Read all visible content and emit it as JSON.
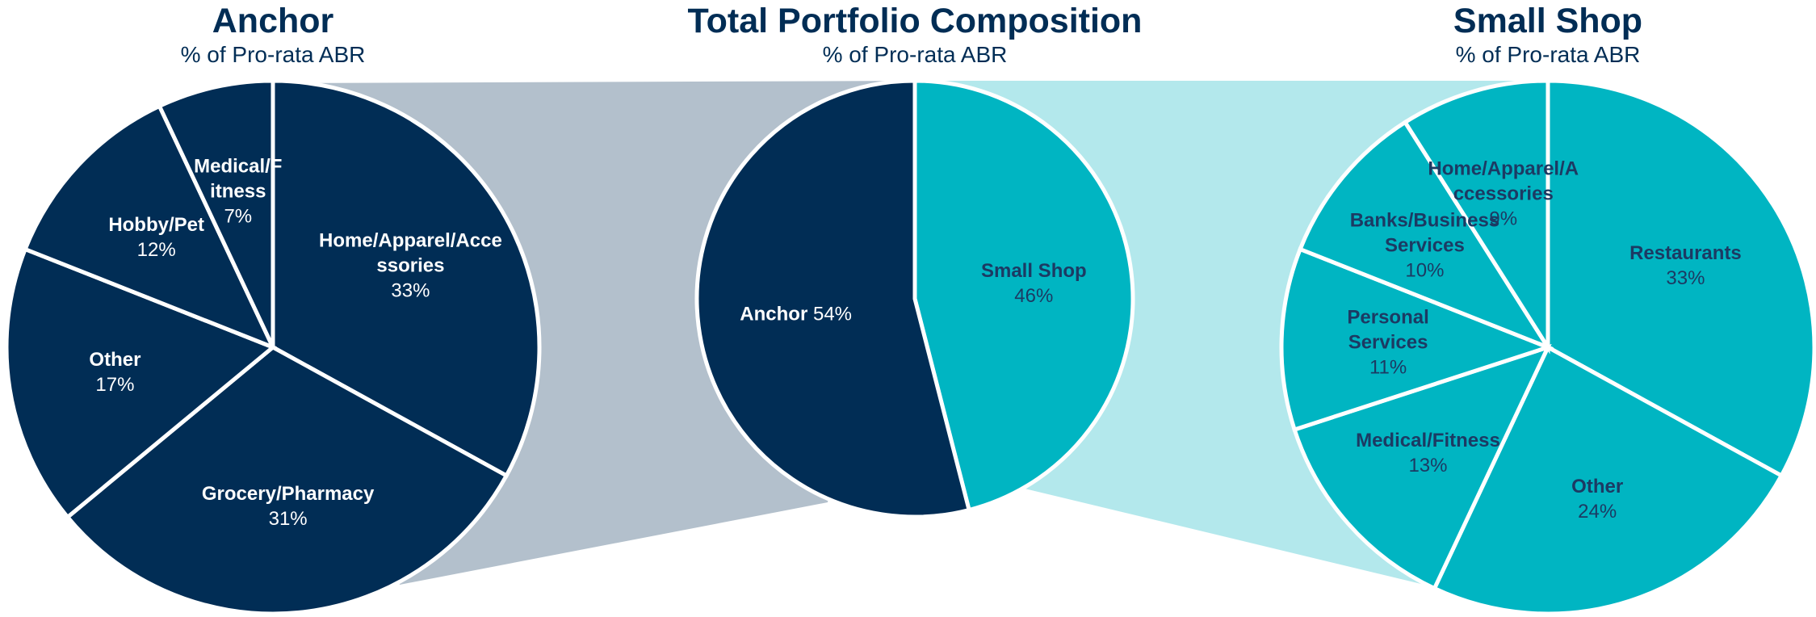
{
  "chart_data": [
    {
      "type": "pie",
      "title": "Anchor",
      "subtitle": "% of Pro-rata ABR",
      "categories": [
        "Home/Apparel/Accessories",
        "Grocery/Pharmacy",
        "Other",
        "Hobby/Pet",
        "Medical/Fitness"
      ],
      "values": [
        33,
        31,
        17,
        12,
        7
      ],
      "value_labels": [
        "33%",
        "31%",
        "17%",
        "12%",
        "7%"
      ],
      "colors": [
        "#012d55",
        "#012d55",
        "#012d55",
        "#012d55",
        "#012d55"
      ]
    },
    {
      "type": "pie",
      "title": "Total Portfolio Composition",
      "subtitle": "% of Pro-rata ABR",
      "categories": [
        "Small Shop",
        "Anchor"
      ],
      "values": [
        46,
        54
      ],
      "value_labels": [
        "46%",
        "54%"
      ],
      "colors": [
        "#00b5c2",
        "#012d55"
      ]
    },
    {
      "type": "pie",
      "title": "Small Shop",
      "subtitle": "% of Pro-rata ABR",
      "categories": [
        "Restaurants",
        "Other",
        "Medical/Fitness",
        "Personal Services",
        "Banks/Business Services",
        "Home/Apparel/Accessories"
      ],
      "values": [
        33,
        24,
        13,
        11,
        10,
        9
      ],
      "value_labels": [
        "33%",
        "24%",
        "13%",
        "11%",
        "10%",
        "9%"
      ],
      "colors": [
        "#00b5c2",
        "#00b5c2",
        "#00b5c2",
        "#00b5c2",
        "#00b5c2",
        "#00b5c2"
      ]
    }
  ]
}
